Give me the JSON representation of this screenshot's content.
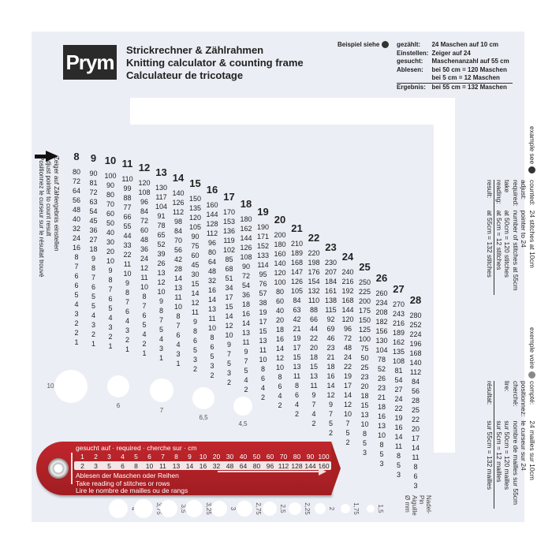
{
  "brand": {
    "logo_text": "Prym"
  },
  "titles": [
    "Strickrechner & Zählrahmen",
    "Knitting calculator & counting frame",
    "Calculateur de tricotage"
  ],
  "example_de": {
    "lead": "Beispiel siehe",
    "rows": [
      [
        "gezählt:",
        "24 Maschen auf 10 cm"
      ],
      [
        "Einstellen:",
        "Zeiger auf 24"
      ],
      [
        "gesucht:",
        "Maschenanzahl auf 55 cm"
      ],
      [
        "Ablesen:",
        "bei 50 cm = 120 Maschen"
      ],
      [
        "",
        "bei   5 cm =   12 Maschen"
      ]
    ],
    "result": [
      "Ergebnis:",
      "bei 55 cm = 132 Maschen"
    ]
  },
  "example_en": {
    "lead": "example see",
    "rows": [
      [
        "counted:",
        "24 stitches at 10cm"
      ],
      [
        "adjust:",
        "pointer to 24"
      ],
      [
        "required:",
        "number of stitches at 55cm"
      ],
      [
        "take",
        "at 50cm = 120 stitches"
      ],
      [
        "reading:",
        "at   5cm =   12 stitches"
      ]
    ],
    "result": [
      "result:",
      "at 55cm = 132 stitches"
    ]
  },
  "example_fr": {
    "lead": "exemple voire",
    "rows": [
      [
        "compté:",
        "24 mailles sur 10cm"
      ],
      [
        "positionnez:",
        "le curseur sur 24"
      ],
      [
        "cherché:",
        "nombre de mailles sur 55cm"
      ],
      [
        "lire:",
        "sur 50cm = 120 mailles"
      ],
      [
        "",
        "sur   5cm =   12 mailles"
      ]
    ],
    "result": [
      "résultat:",
      "sur 55cm = 132 mailles"
    ]
  },
  "left_instructions": [
    "Zeiger auf Zählergebnis einstellen",
    "Adjust pointer to count result",
    "Positionnez le curseur sur le résultat trouvé"
  ],
  "scale": [
    8,
    9,
    10,
    11,
    12,
    13,
    14,
    15,
    16,
    17,
    18,
    19,
    20,
    21,
    22,
    23,
    24,
    25,
    26,
    27,
    28
  ],
  "cm_rows": [
    100,
    90,
    80,
    70,
    60,
    50,
    40,
    30,
    20,
    10,
    9,
    8,
    7,
    6,
    5,
    4,
    3,
    2,
    1
  ],
  "pointer": {
    "label_required": "gesucht auf · required · cherche sur · cm",
    "reading": [
      "Ablesen der Maschen oder Reihen",
      "Take reading of stitches or rows",
      "Lire le nombre de mailles ou de rangs"
    ],
    "setting": 16,
    "color": "#b3222a"
  },
  "needle_sizes": {
    "label": [
      "Nadel-",
      "Pin",
      "Aiguille",
      "Ø mm"
    ],
    "sizes": [
      "10",
      "6",
      "7",
      "6,5",
      "4,5",
      "4",
      "3,75",
      "3,5",
      "3,25",
      "3",
      "2,75",
      "2,5",
      "2,25",
      "2",
      "1,75",
      "1,5"
    ]
  },
  "colors": {
    "card": "#eceef5",
    "pointer": "#b3222a",
    "text": "#222222"
  }
}
